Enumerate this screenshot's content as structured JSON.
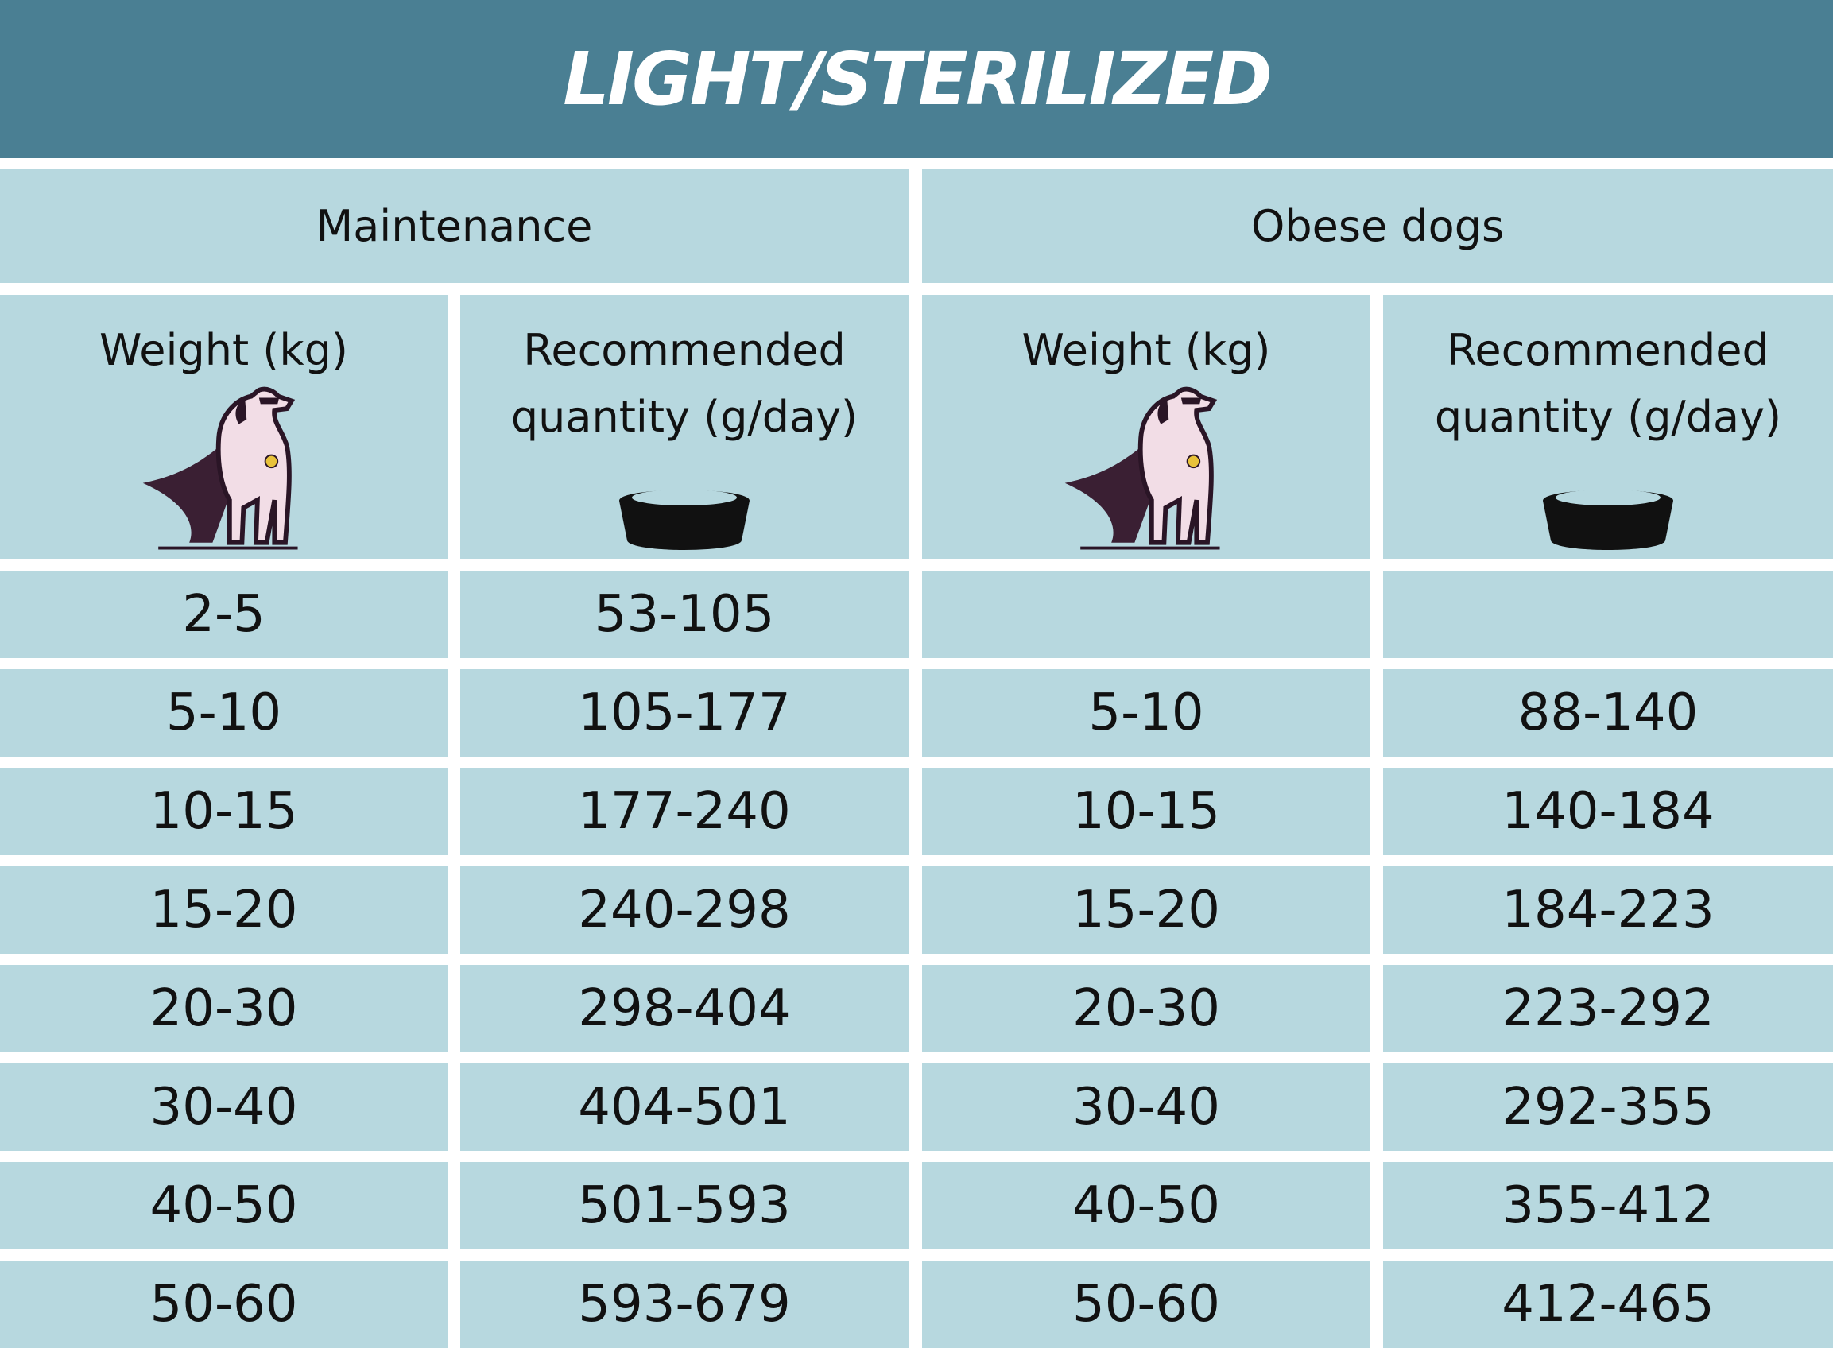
{
  "title": "LIGHT/STERILIZED",
  "groups": [
    {
      "name": "Maintenance",
      "columns": [
        "Weight (kg)",
        "Recommended quantity (g/day)"
      ],
      "rows": [
        [
          "2-5",
          "53-105"
        ],
        [
          "5-10",
          "105-177"
        ],
        [
          "10-15",
          "177-240"
        ],
        [
          "15-20",
          "240-298"
        ],
        [
          "20-30",
          "298-404"
        ],
        [
          "30-40",
          "404-501"
        ],
        [
          "40-50",
          "501-593"
        ],
        [
          "50-60",
          "593-679"
        ]
      ]
    },
    {
      "name": "Obese dogs",
      "columns": [
        "Weight (kg)",
        "Recommended quantity (g/day)"
      ],
      "rows": [
        [
          "5-10",
          "88-140"
        ],
        [
          "10-15",
          "140-184"
        ],
        [
          "15-20",
          "184-223"
        ],
        [
          "20-30",
          "223-292"
        ],
        [
          "30-40",
          "292-355"
        ],
        [
          "40-50",
          "355-412"
        ],
        [
          "50-60",
          "412-465"
        ]
      ]
    }
  ]
}
